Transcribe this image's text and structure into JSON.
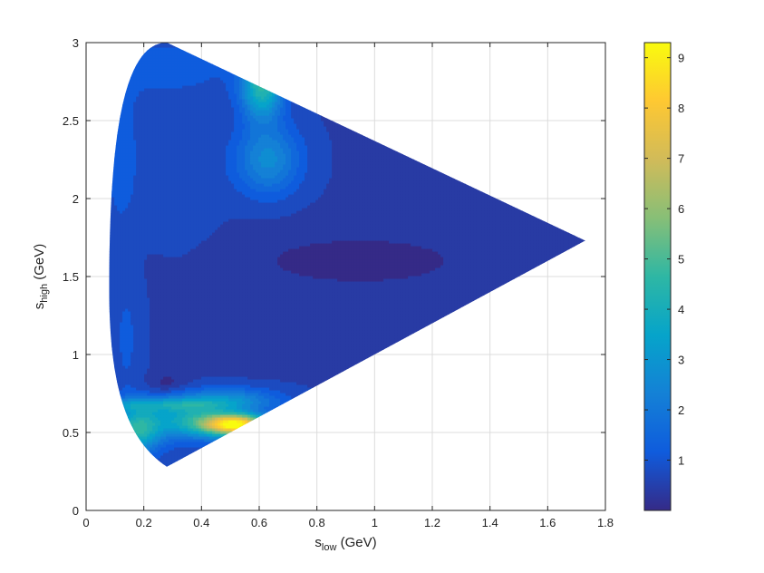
{
  "chart_data": {
    "type": "heatmap",
    "title": "",
    "xlabel": {
      "base": "s",
      "sub": "low",
      "unit": " (GeV)"
    },
    "ylabel": {
      "base": "s",
      "sub": "high",
      "unit": " (GeV)"
    },
    "xlim": [
      0,
      1.8
    ],
    "ylim": [
      0,
      3
    ],
    "xticks": [
      0,
      0.2,
      0.4,
      0.6,
      0.8,
      1,
      1.2,
      1.4,
      1.6,
      1.8
    ],
    "xtick_labels": [
      "0",
      "0.2",
      "0.4",
      "0.6",
      "0.8",
      "1",
      "1.2",
      "1.4",
      "1.6",
      "1.8"
    ],
    "yticks": [
      0,
      0.5,
      1,
      1.5,
      2,
      2.5,
      3
    ],
    "ytick_labels": [
      "0",
      "0.5",
      "1",
      "1.5",
      "2",
      "2.5",
      "3"
    ],
    "grid": true,
    "colormap": "parula",
    "colorbar": {
      "range": [
        0,
        9.3
      ],
      "ticks": [
        1,
        2,
        3,
        4,
        5,
        6,
        7,
        8,
        9
      ],
      "tick_labels": [
        "1",
        "2",
        "3",
        "4",
        "5",
        "6",
        "7",
        "8",
        "9"
      ],
      "placement": "right"
    },
    "boundary": {
      "description": "Dalitz region bounded by curve from (0.08,1.42) through (0.28,3.0) to (1.73,1.73) and down to (0.28,0.28)",
      "vertices_data": [
        [
          0.08,
          1.42
        ],
        [
          0.28,
          0.28
        ],
        [
          1.73,
          1.73
        ],
        [
          0.28,
          3.0
        ]
      ]
    },
    "features": [
      {
        "name": "peak",
        "x": 0.53,
        "y": 0.55,
        "value": 9.2
      },
      {
        "name": "secondary",
        "x": 0.6,
        "y": 2.7,
        "value": 4.5
      },
      {
        "name": "band",
        "x": 0.3,
        "y": 0.68,
        "value": 2.8
      },
      {
        "name": "minimum",
        "x": 0.28,
        "y": 0.82,
        "value": 0.1
      }
    ]
  },
  "colors": {
    "background": "#ffffff",
    "axes": "#262626",
    "grid": "#dcdcdc",
    "colormap_stops": [
      "#352a87",
      "#0f5cdd",
      "#1481d6",
      "#06a4ca",
      "#2eb7a4",
      "#87bf77",
      "#d1bb59",
      "#fec832",
      "#f9fb0e"
    ]
  }
}
